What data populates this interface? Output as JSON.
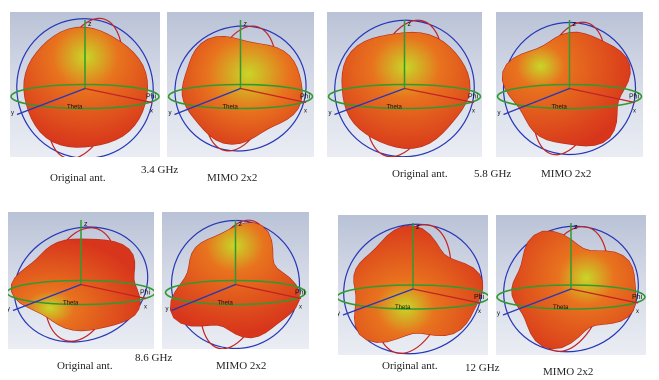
{
  "figure": {
    "rows": [
      {
        "groups": [
          {
            "frequency": "3.4 GHz",
            "left_label": "Original ant.",
            "right_label": "MIMO 2x2"
          },
          {
            "frequency": "5.8 GHz",
            "left_label": "Original ant.",
            "right_label": "MIMO 2x2"
          }
        ]
      },
      {
        "groups": [
          {
            "frequency": "8.6 GHz",
            "left_label": "Original ant.",
            "right_label": "MIMO 2x2"
          },
          {
            "frequency": "12 GHz",
            "left_label": "Original ant.",
            "right_label": "MIMO 2x2"
          }
        ]
      }
    ],
    "axis_labels": {
      "z": "z",
      "y": "y",
      "x": "x",
      "phi": "Phi",
      "theta": "Theta"
    },
    "colors": {
      "pattern_red": "#d8361c",
      "pattern_orange": "#e8731e",
      "pattern_yellow": "#c8d628",
      "axis_blue": "#2636b8",
      "axis_red": "#c22323",
      "axis_green": "#2f9a2f"
    }
  }
}
